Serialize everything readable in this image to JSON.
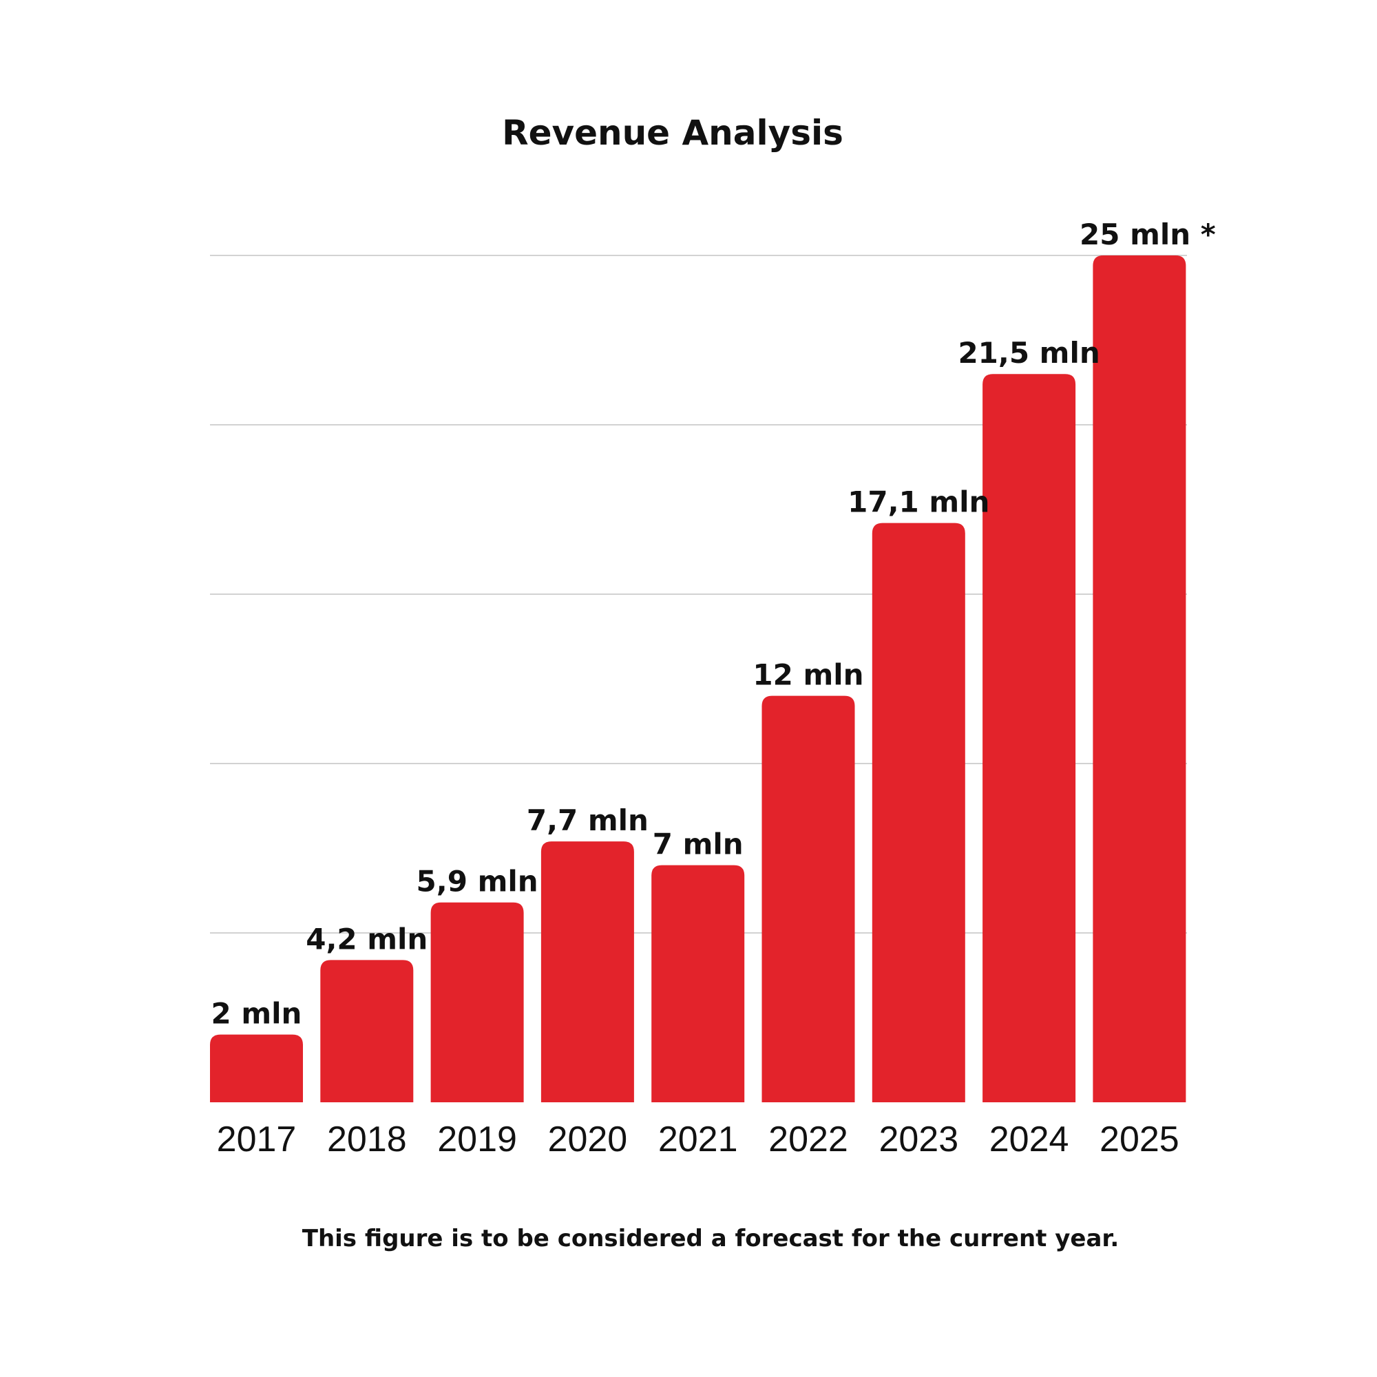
{
  "chart_data": {
    "type": "bar",
    "title": "Revenue Analysis",
    "categories": [
      "2017",
      "2018",
      "2019",
      "2020",
      "2021",
      "2022",
      "2023",
      "2024",
      "2025"
    ],
    "values": [
      2,
      4.2,
      5.9,
      7.7,
      7,
      12,
      17.1,
      21.5,
      25
    ],
    "data_labels": [
      "2 mln",
      "4,2 mln",
      "5,9 mln",
      "7,7 mln",
      "7 mln",
      "12 mln",
      "17,1 mln",
      "21,5 mln",
      "25 mln *"
    ],
    "xlabel": "",
    "ylabel": "",
    "ylim": [
      0,
      25
    ],
    "gridlines": [
      5,
      10,
      15,
      20,
      25
    ],
    "grid": true,
    "bar_color": "#E3232B",
    "footnote": "This figure is to be considered a forecast for the current year."
  }
}
